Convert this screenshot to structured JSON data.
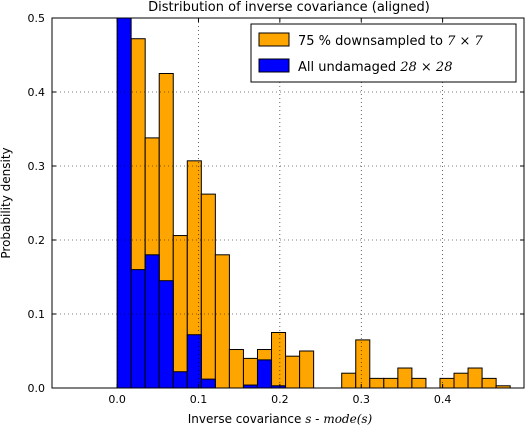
{
  "chart_data": {
    "type": "histogram",
    "title": "Distribution of inverse covariance (aligned)",
    "xlabel_prefix": "Inverse covariance ",
    "xlabel_math": "s",
    "xlabel_mid": " - ",
    "xlabel_math2": "mode(s)",
    "ylabel": "Probability density",
    "xlim": [
      -0.08,
      0.5
    ],
    "ylim": [
      0,
      0.5
    ],
    "xticks": [
      0.0,
      0.1,
      0.2,
      0.3,
      0.4
    ],
    "xtick_labels": [
      "0.0",
      "0.1",
      "0.2",
      "0.3",
      "0.4"
    ],
    "yticks": [
      0.0,
      0.1,
      0.2,
      0.3,
      0.4,
      0.5
    ],
    "ytick_labels": [
      "0.0",
      "0.1",
      "0.2",
      "0.3",
      "0.4",
      "0.5"
    ],
    "grid": true,
    "legend_position": "top-right",
    "bin_width": 0.01725,
    "bin_start": 0.0,
    "series": [
      {
        "name_text": "75 % downsampled to ",
        "name_math": "7 × 7",
        "color": "#FFA500",
        "values": [
          0.0,
          0.472,
          0.338,
          0.425,
          0.206,
          0.307,
          0.262,
          0.18,
          0.052,
          0.04,
          0.052,
          0.075,
          0.043,
          0.05,
          0.0,
          0.0,
          0.02,
          0.065,
          0.013,
          0.013,
          0.027,
          0.013,
          0.0,
          0.013,
          0.02,
          0.027,
          0.013,
          0.003
        ]
      },
      {
        "name_text": "All undamaged ",
        "name_math": "28 × 28",
        "color": "#0000FF",
        "values": [
          0.5,
          0.16,
          0.18,
          0.145,
          0.022,
          0.072,
          0.012,
          0.0,
          0.0,
          0.004,
          0.038,
          0.003,
          0.0,
          0.0,
          0.0,
          0.0,
          0.0,
          0.0,
          0.0,
          0.0,
          0.0,
          0.0,
          0.0,
          0.0,
          0.0,
          0.0,
          0.0,
          0.0
        ]
      }
    ]
  }
}
